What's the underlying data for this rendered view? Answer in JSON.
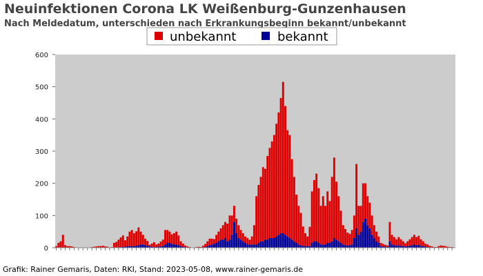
{
  "header": {
    "title": "Neuinfektionen Corona LK Weißenburg-Gunzenhausen",
    "subtitle": "Nach Meldedatum, unterschieden nach Erkrankungsbeginn bekannt/unbekannt"
  },
  "footer": {
    "credit": "Grafik: Rainer Gemaris, Daten: RKI, Stand: 2023-05-08, www.rainer-gemaris.de"
  },
  "chart_data": {
    "type": "bar",
    "stacked": true,
    "title": "Neuinfektionen Corona LK Weißenburg-Gunzenhausen",
    "subtitle": "Nach Meldedatum, unterschieden nach Erkrankungsbeginn bekannt/unbekannt",
    "xlabel": "",
    "ylabel": "",
    "ylim": [
      0,
      600
    ],
    "yticks": [
      0,
      100,
      200,
      300,
      400,
      500,
      600
    ],
    "grid": false,
    "legend_position": "top-center",
    "plot_background": "#cccccc",
    "x_note": "weekly bins by Meldedatum (tick labels illegible in source)",
    "x": [
      1,
      2,
      3,
      4,
      5,
      6,
      7,
      8,
      9,
      10,
      11,
      12,
      13,
      14,
      15,
      16,
      17,
      18,
      19,
      20,
      21,
      22,
      23,
      24,
      25,
      26,
      27,
      28,
      29,
      30,
      31,
      32,
      33,
      34,
      35,
      36,
      37,
      38,
      39,
      40,
      41,
      42,
      43,
      44,
      45,
      46,
      47,
      48,
      49,
      50,
      51,
      52,
      53,
      54,
      55,
      56,
      57,
      58,
      59,
      60,
      61,
      62,
      63,
      64,
      65,
      66,
      67,
      68,
      69,
      70,
      71,
      72,
      73,
      74,
      75,
      76,
      77,
      78,
      79,
      80,
      81,
      82,
      83,
      84,
      85,
      86,
      87,
      88,
      89,
      90,
      91,
      92,
      93,
      94,
      95,
      96,
      97,
      98,
      99,
      100,
      101,
      102,
      103,
      104,
      105,
      106,
      107,
      108,
      109,
      110,
      111,
      112,
      113,
      114,
      115,
      116,
      117,
      118,
      119,
      120,
      121,
      122,
      123,
      124,
      125,
      126,
      127,
      128,
      129,
      130,
      131,
      132,
      133,
      134,
      135,
      136,
      137,
      138,
      139,
      140,
      141,
      142,
      143,
      144,
      145,
      146,
      147,
      148,
      149,
      150,
      151,
      152,
      153,
      154,
      155,
      156,
      157,
      158,
      159,
      160,
      161,
      162,
      163,
      164,
      165,
      166,
      167,
      168,
      169,
      170,
      171,
      172,
      173,
      174,
      175,
      176,
      177,
      178,
      179,
      180
    ],
    "series": [
      {
        "name": "unbekannt",
        "color": "#dd0000",
        "values": [
          5,
          15,
          20,
          40,
          8,
          5,
          5,
          4,
          2,
          1,
          0,
          0,
          0,
          0,
          0,
          1,
          2,
          3,
          4,
          5,
          5,
          6,
          4,
          3,
          1,
          2,
          15,
          18,
          25,
          30,
          35,
          20,
          30,
          45,
          50,
          40,
          45,
          55,
          40,
          30,
          20,
          15,
          5,
          10,
          15,
          8,
          10,
          15,
          20,
          45,
          40,
          35,
          30,
          35,
          40,
          30,
          15,
          10,
          5,
          3,
          2,
          1,
          0,
          2,
          3,
          2,
          5,
          10,
          15,
          20,
          18,
          15,
          25,
          30,
          35,
          45,
          50,
          55,
          75,
          60,
          50,
          45,
          40,
          30,
          25,
          20,
          20,
          15,
          25,
          60,
          150,
          180,
          200,
          230,
          220,
          260,
          280,
          300,
          320,
          350,
          380,
          420,
          470,
          400,
          330,
          320,
          250,
          200,
          150,
          120,
          100,
          60,
          40,
          30,
          60,
          160,
          190,
          210,
          170,
          120,
          150,
          120,
          160,
          130,
          200,
          250,
          180,
          140,
          100,
          60,
          50,
          40,
          35,
          45,
          70,
          200,
          90,
          80,
          120,
          110,
          90,
          80,
          60,
          40,
          30,
          20,
          10,
          8,
          6,
          5,
          60,
          30,
          25,
          20,
          25,
          20,
          15,
          10,
          15,
          20,
          25,
          30,
          25,
          28,
          20,
          15,
          10,
          8,
          5,
          3,
          2,
          2,
          4,
          6,
          5,
          4,
          3,
          2,
          2,
          1
        ],
        "values_bekannt_see_next": true
      },
      {
        "name": "bekannt",
        "color": "#000099",
        "values": [
          0,
          0,
          0,
          0,
          0,
          0,
          0,
          0,
          0,
          0,
          0,
          0,
          0,
          0,
          0,
          0,
          0,
          0,
          0,
          0,
          0,
          0,
          0,
          0,
          0,
          0,
          0,
          0,
          0,
          2,
          3,
          3,
          5,
          5,
          5,
          5,
          6,
          8,
          10,
          10,
          8,
          6,
          4,
          3,
          2,
          2,
          3,
          4,
          5,
          10,
          15,
          15,
          12,
          10,
          10,
          8,
          5,
          3,
          2,
          1,
          0,
          0,
          0,
          0,
          0,
          0,
          1,
          2,
          5,
          8,
          10,
          12,
          15,
          20,
          25,
          25,
          30,
          20,
          25,
          40,
          80,
          45,
          30,
          25,
          20,
          15,
          10,
          10,
          10,
          10,
          10,
          15,
          20,
          20,
          25,
          25,
          30,
          30,
          30,
          35,
          40,
          45,
          45,
          40,
          35,
          30,
          25,
          20,
          15,
          10,
          8,
          6,
          5,
          5,
          5,
          15,
          20,
          20,
          15,
          10,
          10,
          10,
          15,
          15,
          20,
          30,
          25,
          20,
          15,
          10,
          8,
          7,
          8,
          10,
          30,
          60,
          40,
          50,
          80,
          90,
          70,
          60,
          40,
          30,
          20,
          15,
          5,
          4,
          3,
          2,
          20,
          10,
          8,
          6,
          8,
          6,
          5,
          4,
          5,
          6,
          8,
          10,
          8,
          9,
          6,
          5,
          3,
          2,
          1,
          1,
          0,
          0,
          1,
          1,
          1,
          1,
          0,
          0,
          0,
          0
        ]
      }
    ]
  }
}
